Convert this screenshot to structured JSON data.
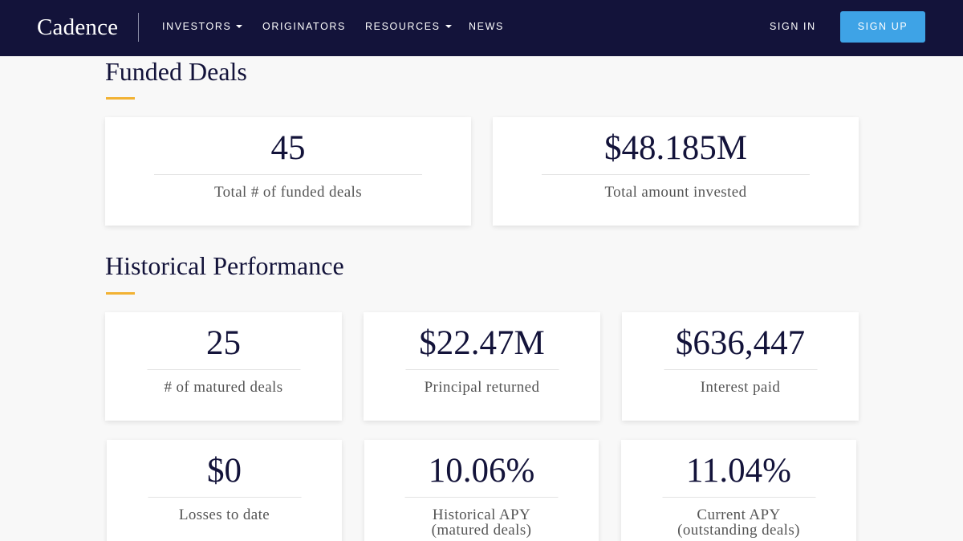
{
  "nav": {
    "brand": "Cadence",
    "items": [
      {
        "label": "INVESTORS",
        "dropdown": true
      },
      {
        "label": "ORIGINATORS",
        "dropdown": false
      },
      {
        "label": "RESOURCES",
        "dropdown": true
      },
      {
        "label": "NEWS",
        "dropdown": false
      }
    ],
    "sign_in": "SIGN IN",
    "sign_up": "SIGN UP"
  },
  "funded": {
    "title": "Funded Deals",
    "cards": [
      {
        "value": "45",
        "label": "Total # of funded deals"
      },
      {
        "value": "$48.185M",
        "label": "Total amount invested"
      }
    ]
  },
  "historical": {
    "title": "Historical Performance",
    "cards": [
      {
        "value": "25",
        "label": "# of matured deals"
      },
      {
        "value": "$22.47M",
        "label": "Principal returned"
      },
      {
        "value": "$636,447",
        "label": "Interest paid"
      },
      {
        "value": "$0",
        "label": "Losses to date"
      },
      {
        "value": "10.06%",
        "label": "Historical APY",
        "sublabel": "(matured deals)"
      },
      {
        "value": "11.04%",
        "label": "Current APY",
        "sublabel": "(outstanding deals)"
      }
    ]
  },
  "colors": {
    "nav_bg": "#13133a",
    "accent": "#f2b233",
    "button": "#3ea3e6",
    "text_dark": "#13133a"
  }
}
